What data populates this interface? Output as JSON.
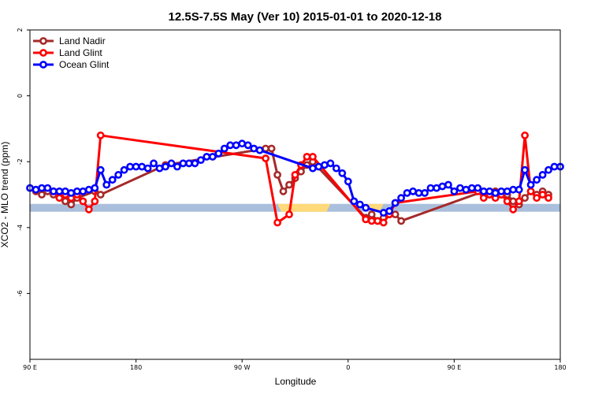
{
  "chart_data": {
    "type": "line",
    "title": "12.5S-7.5S May (Ver 10)   2015-01-01 to 2020-12-18",
    "xlabel": "Longitude",
    "ylabel": "XCO2 - MLO trend (ppm)",
    "xlim": [
      90,
      540
    ],
    "ylim": [
      -8,
      2
    ],
    "x_ticks": [
      {
        "value": 90,
        "label": "90 E"
      },
      {
        "value": 180,
        "label": "180"
      },
      {
        "value": 270,
        "label": "90 W"
      },
      {
        "value": 360,
        "label": "0"
      },
      {
        "value": 450,
        "label": "90 E"
      },
      {
        "value": 540,
        "label": "180"
      }
    ],
    "y_ticks": [
      {
        "value": 2,
        "label": "2"
      },
      {
        "value": 0,
        "label": "0"
      },
      {
        "value": -2,
        "label": "-2"
      },
      {
        "value": -4,
        "label": "-4"
      },
      {
        "value": -6,
        "label": "-6"
      }
    ],
    "legend_position": "top-left",
    "series": [
      {
        "name": "Land Nadir",
        "color": "#a52a2a",
        "x": [
          95,
          100,
          105,
          110,
          115,
          120,
          125,
          130,
          145,
          150,
          205,
          290,
          295,
          300,
          305,
          310,
          315,
          320,
          325,
          330,
          375,
          380,
          385,
          390,
          395,
          400,
          405,
          475,
          480,
          485,
          490,
          495,
          500,
          505,
          510,
          515,
          520,
          525,
          530
        ],
        "y": [
          -2.9,
          -3.0,
          -2.9,
          -3.0,
          -3.0,
          -3.2,
          -3.3,
          -3.1,
          -2.9,
          -3.0,
          -2.1,
          -1.6,
          -1.6,
          -2.4,
          -2.9,
          -2.7,
          -2.5,
          -2.3,
          -2.1,
          -2.0,
          -3.7,
          -3.6,
          -3.8,
          -3.7,
          -3.6,
          -3.6,
          -3.8,
          -2.9,
          -3.0,
          -2.9,
          -3.0,
          -3.0,
          -3.2,
          -3.3,
          -3.1,
          -2.9,
          -3.0,
          -2.9,
          -3.0
        ]
      },
      {
        "name": "Land Glint",
        "color": "#ff0000",
        "x": [
          110,
          115,
          120,
          125,
          130,
          135,
          140,
          145,
          150,
          290,
          300,
          310,
          315,
          320,
          325,
          330,
          375,
          380,
          385,
          390,
          395,
          400,
          470,
          475,
          480,
          485,
          490,
          495,
          500,
          505,
          510,
          515,
          520,
          525,
          530
        ],
        "y": [
          -2.9,
          -3.1,
          -3.0,
          -3.1,
          -3.0,
          -3.2,
          -3.45,
          -3.2,
          -1.2,
          -1.9,
          -3.85,
          -3.6,
          -2.4,
          -2.1,
          -1.85,
          -1.85,
          -3.75,
          -3.8,
          -3.8,
          -3.85,
          -3.6,
          -3.25,
          -2.9,
          -3.1,
          -3.0,
          -3.1,
          -3.0,
          -3.2,
          -3.45,
          -3.2,
          -1.2,
          -2.9,
          -3.1,
          -3.0,
          -3.1
        ]
      },
      {
        "name": "Ocean Glint",
        "color": "#0000ff",
        "x": [
          90,
          95,
          100,
          105,
          110,
          115,
          120,
          125,
          130,
          135,
          140,
          145,
          150,
          155,
          160,
          165,
          170,
          175,
          180,
          185,
          190,
          195,
          200,
          205,
          210,
          215,
          220,
          225,
          230,
          235,
          240,
          245,
          250,
          255,
          260,
          265,
          270,
          275,
          280,
          285,
          330,
          335,
          340,
          345,
          350,
          355,
          360,
          365,
          370,
          375,
          390,
          395,
          400,
          405,
          410,
          415,
          420,
          425,
          430,
          435,
          440,
          445,
          450,
          455,
          460,
          465,
          470,
          475,
          480,
          485,
          490,
          495,
          500,
          505,
          510,
          515,
          520,
          525,
          530,
          535,
          540
        ],
        "y": [
          -2.8,
          -2.85,
          -2.8,
          -2.8,
          -2.9,
          -2.9,
          -2.9,
          -2.95,
          -2.9,
          -2.9,
          -2.85,
          -2.8,
          -2.25,
          -2.7,
          -2.55,
          -2.4,
          -2.25,
          -2.15,
          -2.15,
          -2.15,
          -2.2,
          -2.05,
          -2.2,
          -2.15,
          -2.05,
          -2.15,
          -2.05,
          -2.05,
          -2.05,
          -1.95,
          -1.85,
          -1.85,
          -1.75,
          -1.6,
          -1.5,
          -1.5,
          -1.45,
          -1.5,
          -1.6,
          -1.65,
          -2.2,
          -2.15,
          -2.1,
          -2.05,
          -2.2,
          -2.35,
          -2.6,
          -3.2,
          -3.3,
          -3.4,
          -3.55,
          -3.5,
          -3.25,
          -3.1,
          -2.95,
          -2.9,
          -2.95,
          -2.95,
          -2.8,
          -2.8,
          -2.75,
          -2.7,
          -2.9,
          -2.8,
          -2.85,
          -2.8,
          -2.8,
          -2.9,
          -2.9,
          -2.95,
          -2.9,
          -2.9,
          -2.85,
          -2.85,
          -2.25,
          -2.7,
          -2.55,
          -2.4,
          -2.25,
          -2.15,
          -2.15
        ]
      }
    ],
    "landmask": {
      "y": -3.4,
      "ocean_color": "#a9bfdc",
      "land_color": "#ffd97a",
      "land_segments": [
        [
          300,
          345
        ],
        [
          375,
          390
        ]
      ]
    }
  }
}
